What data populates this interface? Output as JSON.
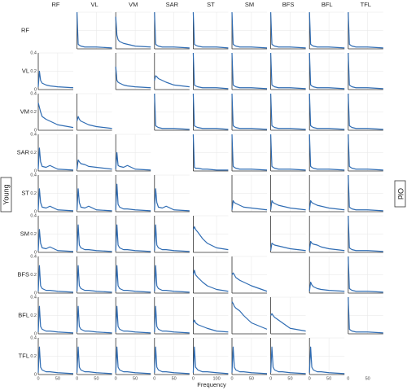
{
  "chart_data": {
    "type": "line",
    "x_label": "Frequency",
    "left_label": "Young",
    "right_label": "Old",
    "color": "#2f6cb3",
    "grid": true,
    "ylim": [
      0,
      0.4
    ],
    "yticks": [
      0,
      0.2,
      0.4
    ],
    "muscles": [
      "RF",
      "VL",
      "VM",
      "SAR",
      "ST",
      "SM",
      "BFS",
      "BFL",
      "TFL"
    ],
    "columns": [
      {
        "x": [
          0,
          3,
          6,
          10,
          20,
          30,
          50,
          90
        ],
        "xlim": [
          0,
          90
        ],
        "xticks": [
          0,
          50
        ]
      },
      {
        "x": [
          0,
          3,
          6,
          10,
          20,
          30,
          50,
          90
        ],
        "xlim": [
          0,
          90
        ],
        "xticks": [
          0,
          50
        ]
      },
      {
        "x": [
          0,
          3,
          6,
          10,
          20,
          30,
          50,
          90
        ],
        "xlim": [
          0,
          90
        ],
        "xticks": [
          0,
          50
        ]
      },
      {
        "x": [
          0,
          3,
          6,
          10,
          20,
          30,
          50,
          90
        ],
        "xlim": [
          0,
          90
        ],
        "xticks": [
          0,
          50
        ]
      },
      {
        "x": [
          0,
          5,
          10,
          20,
          40,
          60,
          100,
          150
        ],
        "xlim": [
          0,
          150
        ],
        "xticks": [
          0,
          100
        ]
      },
      {
        "x": [
          0,
          3,
          6,
          10,
          20,
          30,
          50,
          90
        ],
        "xlim": [
          0,
          90
        ],
        "xticks": [
          0,
          50
        ]
      },
      {
        "x": [
          0,
          3,
          6,
          10,
          20,
          30,
          50,
          90
        ],
        "xlim": [
          0,
          90
        ],
        "xticks": [
          0,
          50
        ]
      },
      {
        "x": [
          0,
          3,
          6,
          10,
          20,
          30,
          50,
          90
        ],
        "xlim": [
          0,
          90
        ],
        "xticks": [
          0,
          50
        ]
      },
      {
        "x": [
          0,
          3,
          6,
          10,
          20,
          30,
          50,
          90
        ],
        "xlim": [
          0,
          90
        ],
        "xticks": [
          0,
          50
        ]
      }
    ],
    "values": [
      [
        null,
        [
          0.4,
          0.05,
          0.04,
          0.03,
          0.02,
          0.02,
          0.02,
          0.01
        ],
        [
          0.35,
          0.15,
          0.1,
          0.08,
          0.06,
          0.05,
          0.03,
          0.02
        ],
        [
          0.4,
          0.05,
          0.04,
          0.03,
          0.02,
          0.02,
          0.02,
          0.01
        ],
        [
          0.4,
          0.05,
          0.04,
          0.03,
          0.02,
          0.02,
          0.02,
          0.01
        ],
        [
          0.4,
          0.05,
          0.04,
          0.03,
          0.02,
          0.02,
          0.02,
          0.01
        ],
        [
          0.4,
          0.05,
          0.04,
          0.03,
          0.02,
          0.02,
          0.02,
          0.01
        ],
        [
          0.4,
          0.05,
          0.04,
          0.03,
          0.02,
          0.02,
          0.02,
          0.01
        ],
        [
          0.4,
          0.05,
          0.04,
          0.03,
          0.02,
          0.02,
          0.02,
          0.01
        ]
      ],
      [
        [
          0.03,
          0.2,
          0.1,
          0.07,
          0.05,
          0.04,
          0.03,
          0.02
        ],
        null,
        [
          0.25,
          0.1,
          0.08,
          0.07,
          0.05,
          0.04,
          0.03,
          0.02
        ],
        [
          0.1,
          0.15,
          0.14,
          0.12,
          0.1,
          0.08,
          0.05,
          0.03
        ],
        [
          0.4,
          0.05,
          0.04,
          0.03,
          0.02,
          0.02,
          0.02,
          0.01
        ],
        [
          0.4,
          0.05,
          0.04,
          0.03,
          0.02,
          0.02,
          0.02,
          0.01
        ],
        [
          0.4,
          0.05,
          0.04,
          0.03,
          0.02,
          0.02,
          0.02,
          0.01
        ],
        [
          0.4,
          0.05,
          0.04,
          0.03,
          0.02,
          0.02,
          0.02,
          0.01
        ],
        [
          0.4,
          0.05,
          0.04,
          0.03,
          0.02,
          0.02,
          0.02,
          0.01
        ]
      ],
      [
        [
          0.3,
          0.25,
          0.2,
          0.15,
          0.12,
          0.1,
          0.06,
          0.03
        ],
        [
          0.1,
          0.15,
          0.12,
          0.1,
          0.08,
          0.06,
          0.04,
          0.02
        ],
        null,
        [
          0.4,
          0.05,
          0.04,
          0.03,
          0.02,
          0.02,
          0.02,
          0.01
        ],
        [
          0.4,
          0.05,
          0.04,
          0.03,
          0.02,
          0.02,
          0.02,
          0.01
        ],
        [
          0.4,
          0.05,
          0.04,
          0.03,
          0.02,
          0.02,
          0.02,
          0.01
        ],
        [
          0.4,
          0.05,
          0.04,
          0.03,
          0.02,
          0.02,
          0.02,
          0.01
        ],
        [
          0.4,
          0.05,
          0.04,
          0.03,
          0.02,
          0.02,
          0.02,
          0.01
        ],
        [
          0.4,
          0.05,
          0.04,
          0.03,
          0.02,
          0.02,
          0.02,
          0.01
        ]
      ],
      [
        [
          0.02,
          0.25,
          0.1,
          0.05,
          0.04,
          0.06,
          0.02,
          0.01
        ],
        [
          0.02,
          0.12,
          0.1,
          0.08,
          0.07,
          0.05,
          0.04,
          0.02
        ],
        [
          0.02,
          0.2,
          0.06,
          0.05,
          0.04,
          0.06,
          0.02,
          0.01
        ],
        null,
        [
          0.4,
          0.04,
          0.03,
          0.03,
          0.02,
          0.02,
          0.01,
          0.01
        ],
        [
          0.4,
          0.05,
          0.04,
          0.03,
          0.02,
          0.02,
          0.02,
          0.01
        ],
        [
          0.4,
          0.05,
          0.04,
          0.03,
          0.02,
          0.02,
          0.02,
          0.01
        ],
        [
          0.4,
          0.05,
          0.04,
          0.03,
          0.02,
          0.02,
          0.02,
          0.01
        ],
        [
          0.4,
          0.05,
          0.04,
          0.03,
          0.02,
          0.02,
          0.02,
          0.01
        ]
      ],
      [
        [
          0.02,
          0.25,
          0.1,
          0.05,
          0.04,
          0.06,
          0.02,
          0.01
        ],
        [
          0.02,
          0.25,
          0.1,
          0.05,
          0.04,
          0.06,
          0.02,
          0.01
        ],
        [
          0.02,
          0.3,
          0.08,
          0.05,
          0.03,
          0.03,
          0.02,
          0.01
        ],
        [
          0.02,
          0.25,
          0.1,
          0.05,
          0.04,
          0.06,
          0.02,
          0.01
        ],
        null,
        [
          0.02,
          0.12,
          0.1,
          0.09,
          0.07,
          0.05,
          0.04,
          0.02
        ],
        [
          0.02,
          0.12,
          0.1,
          0.09,
          0.07,
          0.06,
          0.04,
          0.02
        ],
        [
          0.02,
          0.12,
          0.1,
          0.09,
          0.07,
          0.06,
          0.04,
          0.02
        ],
        [
          0.4,
          0.05,
          0.04,
          0.03,
          0.02,
          0.02,
          0.02,
          0.01
        ]
      ],
      [
        [
          0.02,
          0.25,
          0.1,
          0.05,
          0.04,
          0.06,
          0.02,
          0.01
        ],
        [
          0.02,
          0.3,
          0.08,
          0.05,
          0.03,
          0.03,
          0.02,
          0.01
        ],
        [
          0.02,
          0.3,
          0.08,
          0.05,
          0.03,
          0.03,
          0.02,
          0.01
        ],
        [
          0.02,
          0.3,
          0.08,
          0.05,
          0.03,
          0.03,
          0.02,
          0.01
        ],
        [
          0.25,
          0.28,
          0.25,
          0.22,
          0.15,
          0.1,
          0.05,
          0.03
        ],
        null,
        [
          0.02,
          0.1,
          0.09,
          0.08,
          0.07,
          0.06,
          0.04,
          0.02
        ],
        [
          0.02,
          0.12,
          0.1,
          0.09,
          0.08,
          0.06,
          0.04,
          0.02
        ],
        [
          0.4,
          0.05,
          0.04,
          0.03,
          0.02,
          0.02,
          0.02,
          0.01
        ]
      ],
      [
        [
          0.02,
          0.3,
          0.08,
          0.05,
          0.03,
          0.03,
          0.02,
          0.01
        ],
        [
          0.02,
          0.3,
          0.08,
          0.05,
          0.03,
          0.03,
          0.02,
          0.01
        ],
        [
          0.02,
          0.3,
          0.08,
          0.05,
          0.03,
          0.03,
          0.02,
          0.01
        ],
        [
          0.02,
          0.3,
          0.08,
          0.05,
          0.03,
          0.03,
          0.02,
          0.01
        ],
        [
          0.2,
          0.25,
          0.2,
          0.17,
          0.12,
          0.08,
          0.04,
          0.02
        ],
        [
          0.2,
          0.22,
          0.2,
          0.17,
          0.14,
          0.12,
          0.08,
          0.02
        ],
        null,
        [
          0.02,
          0.12,
          0.09,
          0.07,
          0.05,
          0.04,
          0.03,
          0.02
        ],
        [
          0.4,
          0.05,
          0.04,
          0.03,
          0.02,
          0.02,
          0.02,
          0.01
        ]
      ],
      [
        [
          0.02,
          0.3,
          0.08,
          0.05,
          0.03,
          0.03,
          0.02,
          0.01
        ],
        [
          0.02,
          0.3,
          0.08,
          0.05,
          0.03,
          0.03,
          0.02,
          0.01
        ],
        [
          0.02,
          0.3,
          0.08,
          0.05,
          0.03,
          0.03,
          0.02,
          0.01
        ],
        [
          0.02,
          0.3,
          0.08,
          0.05,
          0.03,
          0.03,
          0.02,
          0.01
        ],
        [
          0.12,
          0.15,
          0.12,
          0.1,
          0.08,
          0.06,
          0.03,
          0.02
        ],
        [
          0.35,
          0.33,
          0.3,
          0.28,
          0.25,
          0.2,
          0.12,
          0.05
        ],
        [
          0.2,
          0.22,
          0.2,
          0.18,
          0.15,
          0.12,
          0.06,
          0.03
        ],
        null,
        [
          0.4,
          0.05,
          0.04,
          0.03,
          0.02,
          0.02,
          0.02,
          0.01
        ]
      ],
      [
        [
          0.02,
          0.3,
          0.08,
          0.05,
          0.03,
          0.03,
          0.02,
          0.01
        ],
        [
          0.02,
          0.3,
          0.08,
          0.05,
          0.03,
          0.03,
          0.02,
          0.01
        ],
        [
          0.02,
          0.3,
          0.08,
          0.05,
          0.03,
          0.03,
          0.02,
          0.01
        ],
        [
          0.02,
          0.3,
          0.08,
          0.05,
          0.03,
          0.03,
          0.02,
          0.01
        ],
        [
          0.02,
          0.3,
          0.08,
          0.05,
          0.03,
          0.03,
          0.02,
          0.01
        ],
        [
          0.02,
          0.3,
          0.08,
          0.05,
          0.03,
          0.03,
          0.02,
          0.01
        ],
        [
          0.02,
          0.3,
          0.08,
          0.05,
          0.03,
          0.03,
          0.02,
          0.01
        ],
        [
          0.02,
          0.3,
          0.08,
          0.05,
          0.03,
          0.03,
          0.02,
          0.01
        ],
        null
      ]
    ]
  }
}
